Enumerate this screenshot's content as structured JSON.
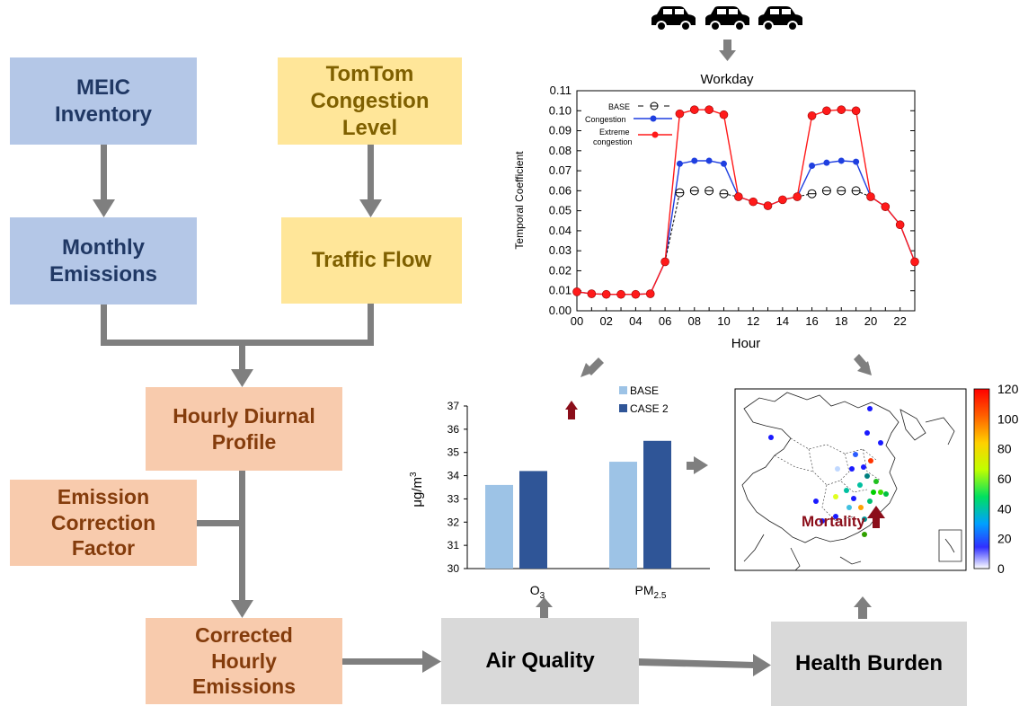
{
  "flow": {
    "meic": "MEIC\nInventory",
    "tomtom": "TomTom\nCongestion\nLevel",
    "monthly": "Monthly\nEmissions",
    "traffic": "Traffic Flow",
    "hourly": "Hourly Diurnal\nProfile",
    "correction": "Emission\nCorrection\nFactor",
    "corrected": "Corrected\nHourly\nEmissions",
    "air_quality": "Air Quality",
    "health": "Health Burden"
  },
  "colors": {
    "blue_box": "#b4c7e7",
    "yellow_box": "#ffe699",
    "orange_box": "#f8cbad",
    "gray_box": "#d9d9d9",
    "arrow": "#7f7f7f",
    "up_arrow": "#8b0e1a",
    "base_bar": "#9dc3e6",
    "case2_bar": "#2f5597",
    "congestion": "#1f3fe0",
    "extreme": "#ff1a1a"
  },
  "icons": [
    "car-icon",
    "car-icon",
    "car-icon"
  ],
  "chart_data": [
    {
      "type": "line",
      "title": "Workday",
      "xlabel": "Hour",
      "ylabel": "Temporal Coefficient",
      "xlim": [
        0,
        23
      ],
      "ylim": [
        0,
        0.11
      ],
      "xticks": [
        "00",
        "02",
        "04",
        "06",
        "08",
        "10",
        "12",
        "14",
        "16",
        "18",
        "20",
        "22"
      ],
      "yticks": [
        "0.00",
        "0.01",
        "0.02",
        "0.03",
        "0.04",
        "0.05",
        "0.06",
        "0.07",
        "0.08",
        "0.09",
        "0.10",
        "0.11"
      ],
      "legend_labels": [
        "BASE",
        "Congestion",
        "Extreme",
        "congestion"
      ],
      "x": [
        0,
        1,
        2,
        3,
        4,
        5,
        6,
        7,
        8,
        9,
        10,
        11,
        12,
        13,
        14,
        15,
        16,
        17,
        18,
        19,
        20,
        21,
        22,
        23
      ],
      "series": [
        {
          "name": "BASE",
          "x": [
            7,
            8,
            9,
            10,
            16,
            17,
            18,
            19
          ],
          "values": [
            0.059,
            0.06,
            0.06,
            0.0585,
            0.0585,
            0.06,
            0.06,
            0.06
          ]
        },
        {
          "name": "Congestion",
          "x": [
            7,
            8,
            9,
            10,
            16,
            17,
            18,
            19
          ],
          "values": [
            0.0735,
            0.075,
            0.075,
            0.0735,
            0.0725,
            0.074,
            0.075,
            0.0745
          ]
        },
        {
          "name": "Extreme congestion",
          "values": [
            0.0095,
            0.0085,
            0.0082,
            0.0082,
            0.0082,
            0.0085,
            0.0245,
            0.0985,
            0.1005,
            0.1005,
            0.098,
            0.057,
            0.0545,
            0.0525,
            0.0555,
            0.057,
            0.0975,
            0.1,
            0.1005,
            0.1,
            0.057,
            0.052,
            0.043,
            0.0245
          ]
        }
      ]
    },
    {
      "type": "bar",
      "categories": [
        "O3",
        "PM2.5"
      ],
      "category_labels": {
        "o3_main": "O",
        "o3_sub": "3",
        "pm_main": "PM",
        "pm_sub": "2.5"
      },
      "ylabel_main": "μg/m",
      "ylabel_sup": "3",
      "ylim": [
        30,
        37
      ],
      "yticks": [
        "30",
        "31",
        "32",
        "33",
        "34",
        "35",
        "36",
        "37"
      ],
      "series": [
        {
          "name": "BASE",
          "values": [
            33.6,
            34.6
          ]
        },
        {
          "name": "CASE 2",
          "values": [
            34.2,
            35.5
          ]
        }
      ]
    },
    {
      "type": "map",
      "annotation": "Mortality",
      "colorbar_ticks": [
        "120",
        "100",
        "80",
        "60",
        "40",
        "20",
        "0"
      ],
      "colorbar_range": [
        0,
        120
      ]
    }
  ]
}
